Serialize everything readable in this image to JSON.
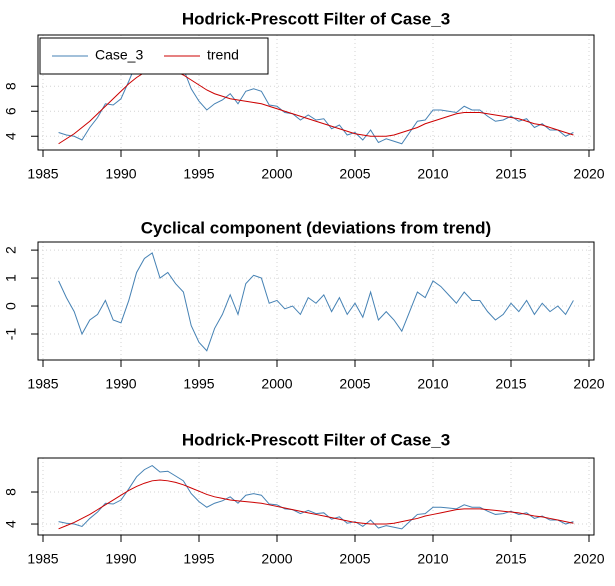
{
  "chart_data": [
    {
      "type": "line",
      "title": "Hodrick-Prescott Filter of Case_3",
      "x": [
        1986,
        1986.5,
        1987,
        1987.5,
        1988,
        1988.5,
        1989,
        1989.5,
        1990,
        1990.5,
        1991,
        1991.5,
        1992,
        1992.5,
        1993,
        1993.5,
        1994,
        1994.5,
        1995,
        1995.5,
        1996,
        1996.5,
        1997,
        1997.5,
        1998,
        1998.5,
        1999,
        1999.5,
        2000,
        2000.5,
        2001,
        2001.5,
        2002,
        2002.5,
        2003,
        2003.5,
        2004,
        2004.5,
        2005,
        2005.5,
        2006,
        2006.5,
        2007,
        2007.5,
        2008,
        2008.5,
        2009,
        2009.5,
        2010,
        2010.5,
        2011,
        2011.5,
        2012,
        2012.5,
        2013,
        2013.5,
        2014,
        2014.5,
        2015,
        2015.5,
        2016,
        2016.5,
        2017,
        2017.5,
        2018,
        2018.5,
        2019
      ],
      "series": [
        {
          "name": "Case_3",
          "color": "#4682b4",
          "values": [
            4.3,
            4.1,
            4.0,
            3.7,
            4.7,
            5.5,
            6.6,
            6.5,
            7.0,
            8.4,
            9.9,
            10.8,
            11.3,
            10.5,
            10.6,
            10.0,
            9.4,
            7.8,
            6.8,
            6.1,
            6.6,
            6.9,
            7.4,
            6.6,
            7.6,
            7.8,
            7.6,
            6.5,
            6.4,
            5.9,
            5.8,
            5.3,
            5.7,
            5.3,
            5.4,
            4.6,
            4.9,
            4.1,
            4.3,
            3.7,
            4.5,
            3.5,
            3.8,
            3.6,
            3.4,
            4.3,
            5.2,
            5.3,
            6.1,
            6.1,
            6.0,
            5.9,
            6.4,
            6.1,
            6.1,
            5.6,
            5.2,
            5.3,
            5.6,
            5.2,
            5.4,
            4.7,
            5.0,
            4.5,
            4.5,
            4.0,
            4.3
          ]
        },
        {
          "name": "trend",
          "color": "#cc0000",
          "values": [
            3.4,
            3.8,
            4.2,
            4.7,
            5.2,
            5.8,
            6.4,
            7.0,
            7.6,
            8.2,
            8.7,
            9.1,
            9.4,
            9.5,
            9.4,
            9.2,
            8.9,
            8.5,
            8.1,
            7.7,
            7.4,
            7.2,
            7.0,
            6.9,
            6.8,
            6.7,
            6.6,
            6.4,
            6.2,
            6.0,
            5.8,
            5.6,
            5.4,
            5.2,
            5.0,
            4.8,
            4.6,
            4.4,
            4.2,
            4.1,
            4.0,
            4.0,
            4.0,
            4.1,
            4.3,
            4.5,
            4.7,
            5.0,
            5.2,
            5.4,
            5.6,
            5.8,
            5.9,
            5.9,
            5.9,
            5.8,
            5.7,
            5.6,
            5.5,
            5.4,
            5.2,
            5.0,
            4.9,
            4.7,
            4.5,
            4.3,
            4.1
          ]
        }
      ],
      "xlim": [
        1984.68,
        2020.32
      ],
      "xticks": [
        1985,
        1990,
        1995,
        2000,
        2005,
        2010,
        2015,
        2020
      ],
      "ylim": [
        2.9,
        12.1
      ],
      "yticks": [
        4,
        6,
        8
      ],
      "grid": true,
      "legend": "topleft"
    },
    {
      "type": "line",
      "title": "Cyclical component (deviations from trend)",
      "x": [
        1986,
        1986.5,
        1987,
        1987.5,
        1988,
        1988.5,
        1989,
        1989.5,
        1990,
        1990.5,
        1991,
        1991.5,
        1992,
        1992.5,
        1993,
        1993.5,
        1994,
        1994.5,
        1995,
        1995.5,
        1996,
        1996.5,
        1997,
        1997.5,
        1998,
        1998.5,
        1999,
        1999.5,
        2000,
        2000.5,
        2001,
        2001.5,
        2002,
        2002.5,
        2003,
        2003.5,
        2004,
        2004.5,
        2005,
        2005.5,
        2006,
        2006.5,
        2007,
        2007.5,
        2008,
        2008.5,
        2009,
        2009.5,
        2010,
        2010.5,
        2011,
        2011.5,
        2012,
        2012.5,
        2013,
        2013.5,
        2014,
        2014.5,
        2015,
        2015.5,
        2016,
        2016.5,
        2017,
        2017.5,
        2018,
        2018.5,
        2019
      ],
      "series": [
        {
          "color": "#4682b4",
          "values": [
            0.9,
            0.3,
            -0.2,
            -1.0,
            -0.5,
            -0.3,
            0.2,
            -0.5,
            -0.6,
            0.2,
            1.2,
            1.7,
            1.9,
            1.0,
            1.2,
            0.8,
            0.5,
            -0.7,
            -1.3,
            -1.6,
            -0.8,
            -0.3,
            0.4,
            -0.3,
            0.8,
            1.1,
            1.0,
            0.1,
            0.2,
            -0.1,
            0.0,
            -0.3,
            0.3,
            0.1,
            0.4,
            -0.2,
            0.3,
            -0.3,
            0.1,
            -0.4,
            0.5,
            -0.5,
            -0.2,
            -0.5,
            -0.9,
            -0.2,
            0.5,
            0.3,
            0.9,
            0.7,
            0.4,
            0.1,
            0.5,
            0.2,
            0.2,
            -0.2,
            -0.5,
            -0.3,
            0.1,
            -0.2,
            0.2,
            -0.3,
            0.1,
            -0.2,
            0.0,
            -0.3,
            0.2
          ]
        }
      ],
      "xlim": [
        1984.68,
        2020.32
      ],
      "xticks": [
        1985,
        1990,
        1995,
        2000,
        2005,
        2010,
        2015,
        2020
      ],
      "ylim": [
        -1.93,
        2.29
      ],
      "yticks": [
        -1,
        0,
        1,
        2
      ],
      "grid": true
    },
    {
      "type": "line",
      "title": "Hodrick-Prescott Filter of Case_3",
      "x": [
        1986,
        1986.5,
        1987,
        1987.5,
        1988,
        1988.5,
        1989,
        1989.5,
        1990,
        1990.5,
        1991,
        1991.5,
        1992,
        1992.5,
        1993,
        1993.5,
        1994,
        1994.5,
        1995,
        1995.5,
        1996,
        1996.5,
        1997,
        1997.5,
        1998,
        1998.5,
        1999,
        1999.5,
        2000,
        2000.5,
        2001,
        2001.5,
        2002,
        2002.5,
        2003,
        2003.5,
        2004,
        2004.5,
        2005,
        2005.5,
        2006,
        2006.5,
        2007,
        2007.5,
        2008,
        2008.5,
        2009,
        2009.5,
        2010,
        2010.5,
        2011,
        2011.5,
        2012,
        2012.5,
        2013,
        2013.5,
        2014,
        2014.5,
        2015,
        2015.5,
        2016,
        2016.5,
        2017,
        2017.5,
        2018,
        2018.5,
        2019
      ],
      "series": [
        {
          "color": "#4682b4",
          "values": [
            4.3,
            4.1,
            4.0,
            3.7,
            4.7,
            5.5,
            6.6,
            6.5,
            7.0,
            8.4,
            9.9,
            10.8,
            11.3,
            10.5,
            10.6,
            10.0,
            9.4,
            7.8,
            6.8,
            6.1,
            6.6,
            6.9,
            7.4,
            6.6,
            7.6,
            7.8,
            7.6,
            6.5,
            6.4,
            5.9,
            5.8,
            5.3,
            5.7,
            5.3,
            5.4,
            4.6,
            4.9,
            4.1,
            4.3,
            3.7,
            4.5,
            3.5,
            3.8,
            3.6,
            3.4,
            4.3,
            5.2,
            5.3,
            6.1,
            6.1,
            6.0,
            5.9,
            6.4,
            6.1,
            6.1,
            5.6,
            5.2,
            5.3,
            5.6,
            5.2,
            5.4,
            4.7,
            5.0,
            4.5,
            4.5,
            4.0,
            4.3
          ]
        },
        {
          "color": "#cc0000",
          "values": [
            3.4,
            3.8,
            4.2,
            4.7,
            5.2,
            5.8,
            6.4,
            7.0,
            7.6,
            8.2,
            8.7,
            9.1,
            9.4,
            9.5,
            9.4,
            9.2,
            8.9,
            8.5,
            8.1,
            7.7,
            7.4,
            7.2,
            7.0,
            6.9,
            6.8,
            6.7,
            6.6,
            6.4,
            6.2,
            6.0,
            5.8,
            5.6,
            5.4,
            5.2,
            5.0,
            4.8,
            4.6,
            4.4,
            4.2,
            4.1,
            4.0,
            4.0,
            4.0,
            4.1,
            4.3,
            4.5,
            4.7,
            5.0,
            5.2,
            5.4,
            5.6,
            5.8,
            5.9,
            5.9,
            5.9,
            5.8,
            5.7,
            5.6,
            5.5,
            5.4,
            5.2,
            5.0,
            4.9,
            4.7,
            4.5,
            4.3,
            4.1
          ]
        }
      ],
      "xlim": [
        1984.68,
        2020.32
      ],
      "xticks": [
        1985,
        1990,
        1995,
        2000,
        2005,
        2010,
        2015,
        2020
      ],
      "ylim": [
        2.63,
        12.25
      ],
      "yticks": [
        4,
        8
      ],
      "grid": true
    }
  ]
}
